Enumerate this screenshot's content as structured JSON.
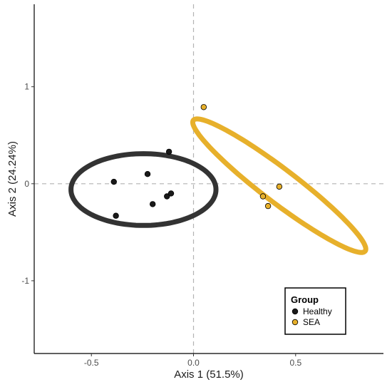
{
  "chart_data": {
    "type": "scatter",
    "title": "",
    "xlabel": "Axis 1 (51.5%)",
    "ylabel": "Axis 2 (24.24%)",
    "xlim": [
      -0.78,
      0.93
    ],
    "ylim": [
      -1.75,
      1.85
    ],
    "xticks": [
      -0.5,
      0.0,
      0.5
    ],
    "xtick_labels": [
      "-0.5",
      "0.0",
      "0.5"
    ],
    "yticks": [
      -1,
      0,
      1
    ],
    "ytick_labels": [
      "-1",
      "0",
      "1"
    ],
    "grid": false,
    "reference_lines": {
      "x": 0,
      "y": 0,
      "style": "dashed"
    },
    "legend": {
      "title": "Group",
      "position": "bottom-right"
    },
    "series": [
      {
        "name": "Healthy",
        "color": "#1a1a1a",
        "ellipse_color": "#333333",
        "points": [
          {
            "x": -0.39,
            "y": 0.02
          },
          {
            "x": -0.38,
            "y": -0.33
          },
          {
            "x": -0.225,
            "y": 0.1
          },
          {
            "x": -0.2,
            "y": -0.21
          },
          {
            "x": -0.13,
            "y": -0.13
          },
          {
            "x": -0.11,
            "y": -0.1
          },
          {
            "x": -0.12,
            "y": 0.33
          }
        ],
        "ellipse": {
          "cx": -0.245,
          "cy": -0.06,
          "rx": 0.355,
          "ry": 0.37,
          "angle_deg": 0
        }
      },
      {
        "name": "SEA",
        "color": "#E7B02B",
        "ellipse_color": "#E7B02B",
        "points": [
          {
            "x": 0.05,
            "y": 0.79
          },
          {
            "x": 0.34,
            "y": -0.13
          },
          {
            "x": 0.365,
            "y": -0.23
          },
          {
            "x": 0.42,
            "y": -0.03
          }
        ],
        "ellipse": {
          "cx": 0.42,
          "cy": -0.02,
          "rx": 0.8,
          "ry": 0.115,
          "angle_deg": -59
        }
      }
    ]
  }
}
